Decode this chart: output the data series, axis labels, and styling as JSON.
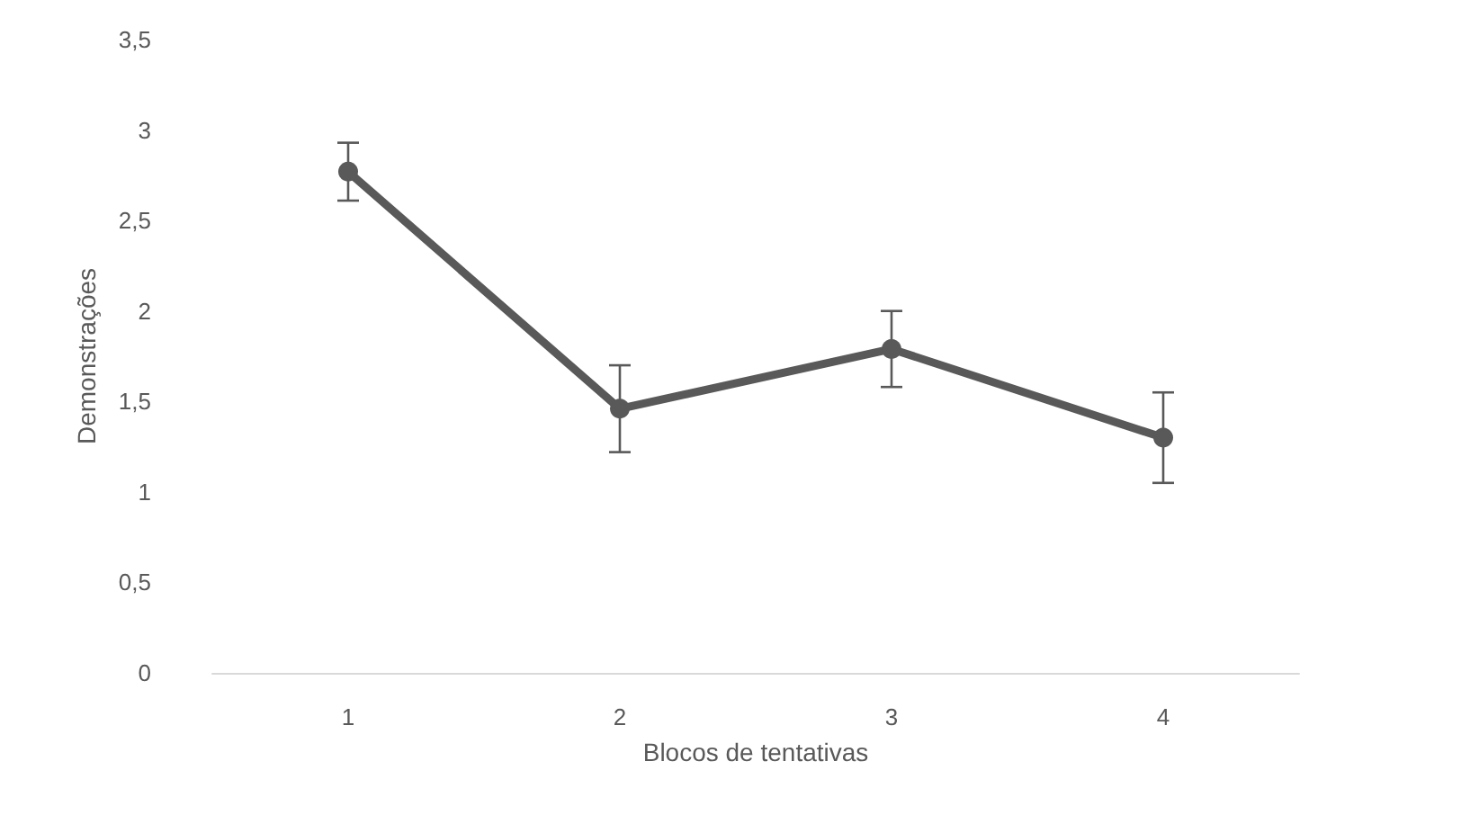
{
  "chart_data": {
    "type": "line",
    "xlabel": "Blocos de tentativas",
    "ylabel": "Demonstrações",
    "categories": [
      "1",
      "2",
      "3",
      "4"
    ],
    "series": [
      {
        "color": "#595959",
        "values": [
          2.77,
          1.46,
          1.79,
          1.3
        ],
        "errors": [
          0.16,
          0.24,
          0.21,
          0.25
        ]
      }
    ],
    "ylim": [
      0,
      3.5
    ],
    "yticks": [
      {
        "value": 0,
        "label": "0"
      },
      {
        "value": 0.5,
        "label": "0,5"
      },
      {
        "value": 1,
        "label": "1"
      },
      {
        "value": 1.5,
        "label": "1,5"
      },
      {
        "value": 2,
        "label": "2"
      },
      {
        "value": 2.5,
        "label": "2,5"
      },
      {
        "value": 3,
        "label": "3"
      },
      {
        "value": 3.5,
        "label": "3,5"
      }
    ],
    "grid": false,
    "marker": "circle",
    "line_style": "solid"
  }
}
